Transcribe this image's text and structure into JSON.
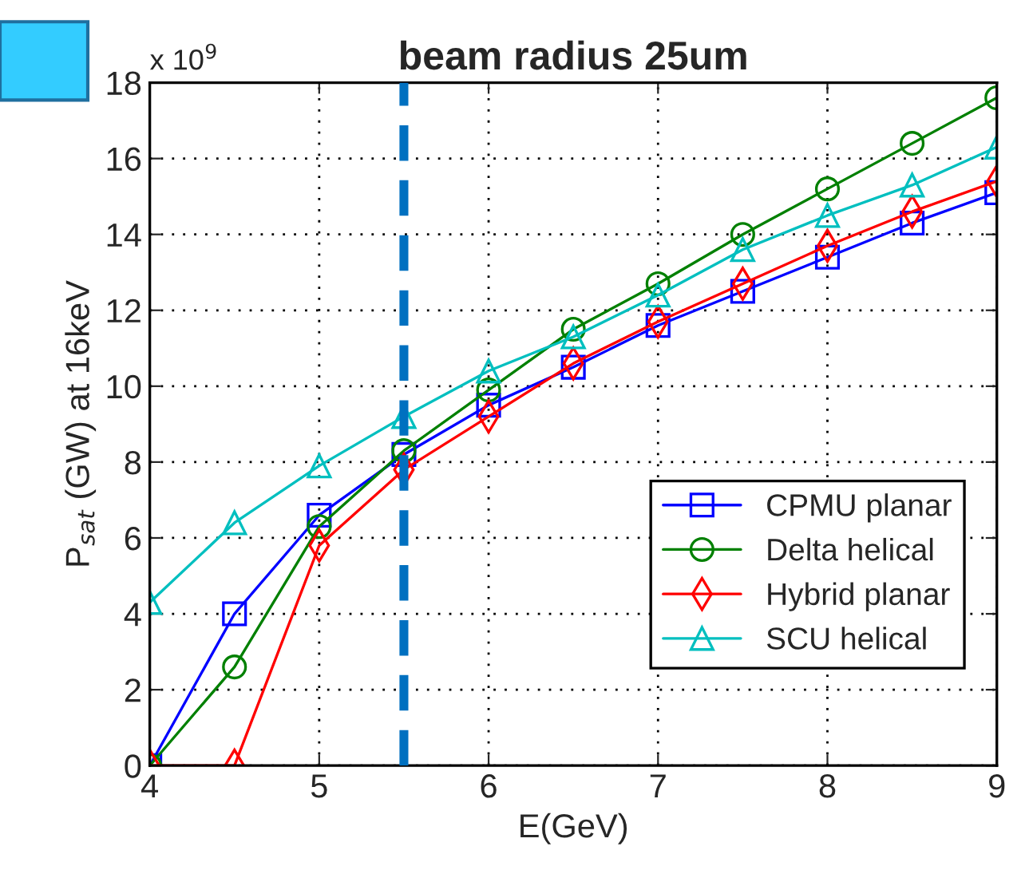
{
  "chart_data": {
    "type": "line",
    "title": "beam radius 25um",
    "xlabel": "E(GeV)",
    "ylabel": "P$_{sat}$ (GW) at 16keV",
    "annotations": [
      "x 10$^{9}$"
    ],
    "x": [
      4,
      4.5,
      5,
      5.5,
      6,
      6.5,
      7,
      7.5,
      8,
      8.5,
      9
    ],
    "series": [
      {
        "name": "CPMU planar",
        "color": "#0000ff",
        "marker": "square",
        "values": [
          0,
          4.0,
          6.6,
          8.2,
          9.5,
          10.5,
          11.6,
          12.5,
          13.4,
          14.3,
          15.1
        ]
      },
      {
        "name": "Delta helical",
        "color": "#008000",
        "marker": "circle",
        "values": [
          0,
          2.6,
          6.3,
          8.3,
          9.9,
          11.5,
          12.7,
          14.0,
          15.2,
          16.4,
          17.6
        ]
      },
      {
        "name": "Hybrid planar",
        "color": "#ff0000",
        "marker": "diamond",
        "values": [
          0,
          0,
          5.8,
          7.8,
          9.2,
          10.6,
          11.7,
          12.7,
          13.7,
          14.6,
          15.4
        ]
      },
      {
        "name": "SCU helical",
        "color": "#00bfbf",
        "marker": "triangle",
        "values": [
          4.3,
          6.4,
          7.9,
          9.2,
          10.4,
          11.3,
          12.4,
          13.6,
          14.5,
          15.3,
          16.3
        ]
      }
    ],
    "xlim": [
      4,
      9
    ],
    "ylim": [
      0,
      18
    ],
    "xticks": [
      4,
      5,
      6,
      7,
      8,
      9
    ],
    "yticks": [
      0,
      2,
      4,
      6,
      8,
      10,
      12,
      14,
      16,
      18
    ],
    "ref_lines": [
      {
        "axis": "x",
        "value": 5.5,
        "color": "#0070c0",
        "line_style": "dashed"
      }
    ],
    "grid": true,
    "legend": "bottom right",
    "line_style": "solid"
  }
}
